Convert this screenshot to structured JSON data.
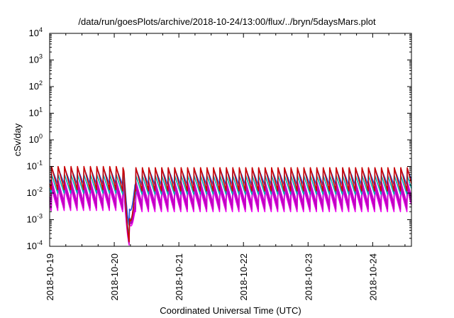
{
  "chart_data": {
    "type": "line",
    "title": "/data/run/goesPlots/archive/2018-10-24/13:00/flux/../bryn/5daysMars.plot",
    "xlabel": "Coordinated Universal Time (UTC)",
    "ylabel": "cSv/day",
    "y_scale": "log",
    "ylim_exp": [
      -4,
      4
    ],
    "y_ticks": [
      {
        "base": "10",
        "exp": "-4"
      },
      {
        "base": "10",
        "exp": "-3"
      },
      {
        "base": "10",
        "exp": "-2"
      },
      {
        "base": "10",
        "exp": "-1"
      },
      {
        "base": "10",
        "exp": "0"
      },
      {
        "base": "10",
        "exp": "1"
      },
      {
        "base": "10",
        "exp": "2"
      },
      {
        "base": "10",
        "exp": "3"
      },
      {
        "base": "10",
        "exp": "4"
      }
    ],
    "x_tick_labels": [
      "2018-10-19",
      "2018-10-20",
      "2018-10-21",
      "2018-10-22",
      "2018-10-23",
      "2018-10-24"
    ],
    "x_range_days": [
      0,
      5.6
    ],
    "dip_window_days": [
      1.15,
      1.34
    ],
    "cycle_period_days": 0.1,
    "grid": false,
    "legend": "none",
    "series": [
      {
        "color": "#cc0000",
        "peak": 0.1,
        "trough": 0.012,
        "dip_factor": 0.012
      },
      {
        "color": "#2255dd",
        "peak": 0.09,
        "trough": 0.02,
        "dip_factor": 0.03
      },
      {
        "color": "#00b0b0",
        "peak": 0.05,
        "trough": 0.009,
        "dip_factor": 0.025
      },
      {
        "color": "#d000d0",
        "peak": 0.03,
        "trough": 0.004,
        "dip_factor": 0.045
      },
      {
        "color": "#c000c0",
        "peak": 0.02,
        "trough": 0.0025,
        "dip_factor": 0.05
      },
      {
        "color": "#9900aa",
        "peak": 0.022,
        "trough": 0.003,
        "dip_factor": 0.05
      },
      {
        "color": "#ee00ee",
        "peak": 0.015,
        "trough": 0.002,
        "dip_factor": 0.055
      }
    ]
  }
}
